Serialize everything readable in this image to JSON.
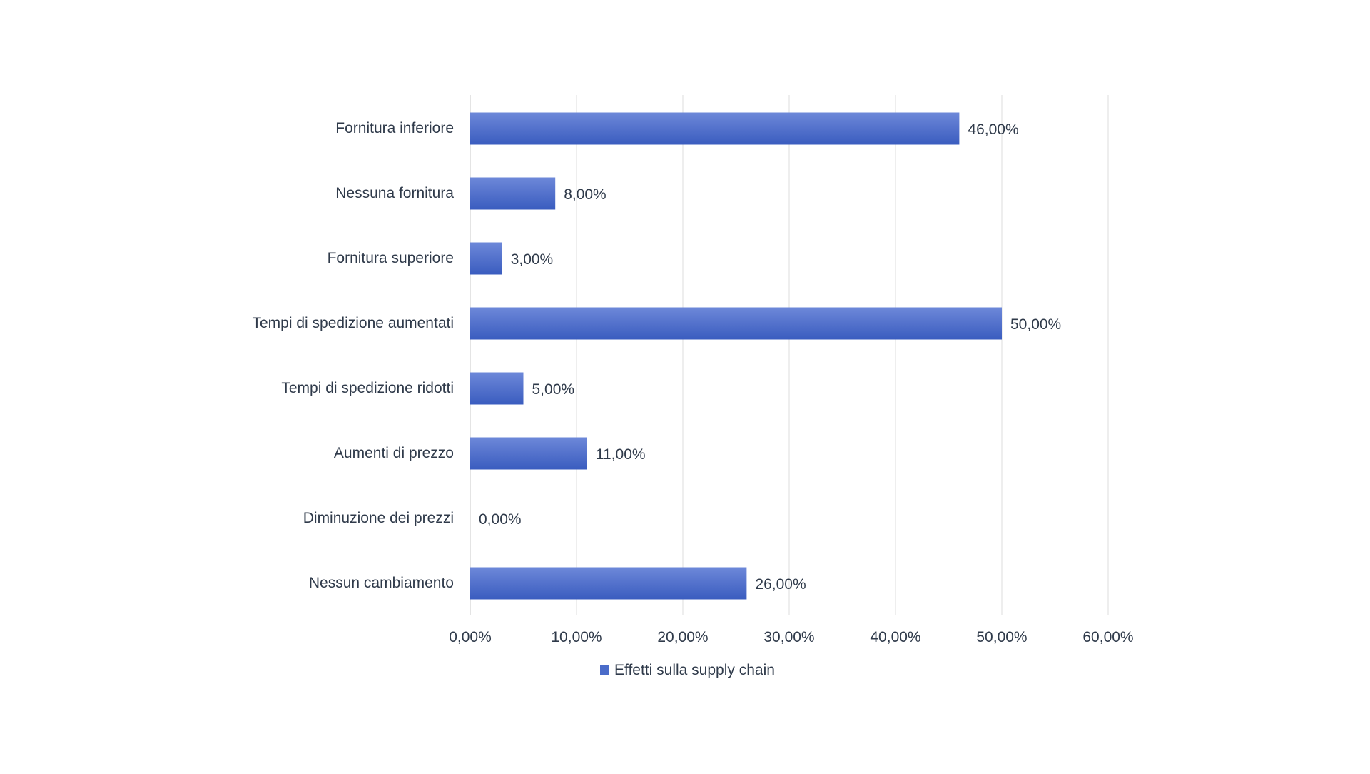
{
  "chart_data": {
    "type": "bar",
    "orientation": "horizontal",
    "categories": [
      "Fornitura inferiore",
      "Nessuna fornitura",
      "Fornitura superiore",
      "Tempi di spedizione aumentati",
      "Tempi di spedizione ridotti",
      "Aumenti di prezzo",
      "Diminuzione dei prezzi",
      "Nessun cambiamento"
    ],
    "series": [
      {
        "name": "Effetti sulla supply chain",
        "values": [
          46,
          8,
          3,
          50,
          5,
          11,
          0,
          26
        ],
        "labels": [
          "46,00%",
          "8,00%",
          "3,00%",
          "50,00%",
          "5,00%",
          "11,00%",
          "0,00%",
          "26,00%"
        ],
        "color": "#4a6cc9"
      }
    ],
    "x_ticks": [
      "0,00%",
      "10,00%",
      "20,00%",
      "30,00%",
      "40,00%",
      "50,00%",
      "60,00%"
    ],
    "xlim": [
      0,
      60
    ],
    "grid": true,
    "legend_position": "bottom",
    "title": "",
    "xlabel": "",
    "ylabel": ""
  }
}
